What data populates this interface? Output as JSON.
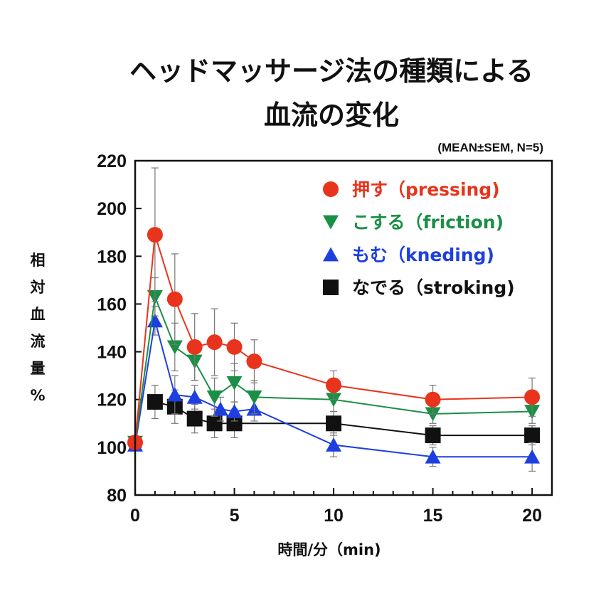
{
  "chart_data": {
    "type": "line",
    "title_lines": [
      "ヘッドマッサージ法の種類による",
      "血流の変化"
    ],
    "subtitle": "(MEAN±SEM, N=5)",
    "xlabel": "時間/分（min)",
    "ylabel_chars": [
      "相",
      "対",
      "血",
      "流",
      "量",
      "%"
    ],
    "xlim": [
      0,
      21
    ],
    "ylim": [
      80,
      220
    ],
    "x_ticks": [
      0,
      5,
      10,
      15,
      20
    ],
    "x_tick_labels": [
      "0",
      "5",
      "10",
      "15",
      "20"
    ],
    "y_ticks": [
      80,
      100,
      120,
      140,
      160,
      180,
      200,
      220
    ],
    "y_tick_labels": [
      "80",
      "100",
      "120",
      "140",
      "160",
      "180",
      "200",
      "220"
    ],
    "legend_position": "top-right",
    "series": [
      {
        "name": "押す（pressing)",
        "color": "#e8341c",
        "marker": "circle",
        "x": [
          0,
          1,
          2,
          3,
          4,
          5,
          6,
          10,
          15,
          20
        ],
        "y": [
          102,
          189,
          162,
          142,
          144,
          142,
          136,
          126,
          120,
          121
        ],
        "err": [
          0,
          28,
          19,
          14,
          14,
          10,
          9,
          6,
          6,
          8
        ]
      },
      {
        "name": "こする（friction)",
        "color": "#1a8f45",
        "marker": "triangle-down",
        "x": [
          0,
          1,
          2,
          3,
          4,
          5,
          6,
          10,
          15,
          20
        ],
        "y": [
          102,
          163,
          142,
          136,
          121,
          127,
          121,
          120,
          114,
          115
        ],
        "err": [
          0,
          8,
          10,
          8,
          8,
          8,
          7,
          5,
          4,
          5
        ]
      },
      {
        "name": "もむ（kneding)",
        "color": "#1e3fe0",
        "marker": "triangle-up",
        "x": [
          0,
          1,
          2,
          3,
          4.3,
          5,
          6,
          10,
          15,
          20
        ],
        "y": [
          101,
          153,
          122,
          121,
          116,
          115,
          116,
          101,
          96,
          96
        ],
        "err": [
          0,
          6,
          8,
          5,
          5,
          4,
          5,
          5,
          4,
          6
        ]
      },
      {
        "name": "なでる（stroking)",
        "color": "#111111",
        "marker": "square",
        "x": [
          1,
          2,
          3,
          4,
          5,
          10,
          15,
          20
        ],
        "y": [
          119,
          117,
          112,
          110,
          110,
          110,
          105,
          105
        ],
        "err": [
          7,
          7,
          6,
          6,
          6,
          5,
          4,
          4
        ]
      }
    ]
  }
}
